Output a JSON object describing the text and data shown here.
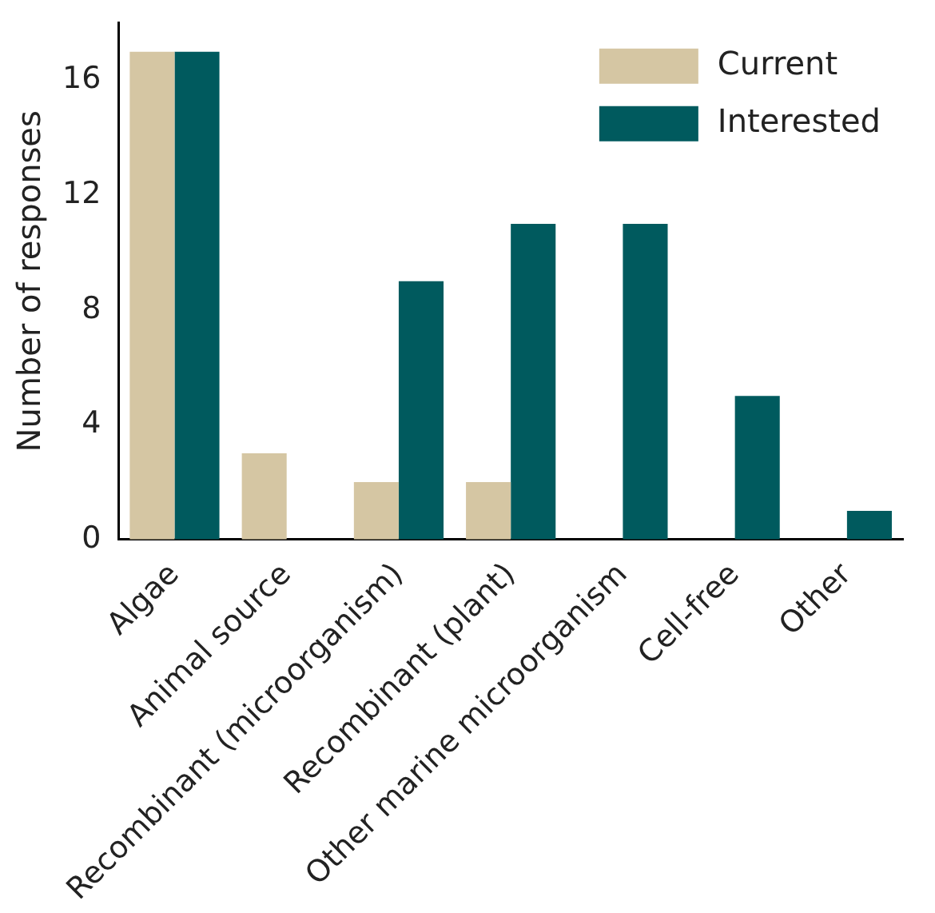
{
  "chart_data": {
    "type": "bar",
    "ylabel": "Number of responses",
    "categories": [
      "Algae",
      "Animal source",
      "Recombinant (microorganism)",
      "Recombinant (plant)",
      "Other marine microorganism",
      "Cell-free",
      "Other"
    ],
    "series": [
      {
        "name": "Current",
        "color": "#d5c6a3",
        "values": [
          17,
          3,
          2,
          2,
          0,
          0,
          0
        ]
      },
      {
        "name": "Interested",
        "color": "#005a5e",
        "values": [
          17,
          0,
          9,
          11,
          11,
          5,
          1
        ]
      }
    ],
    "ylim": [
      0,
      18
    ],
    "yticks": [
      0,
      4,
      8,
      12,
      16
    ],
    "grid": false,
    "legend": "top right"
  }
}
